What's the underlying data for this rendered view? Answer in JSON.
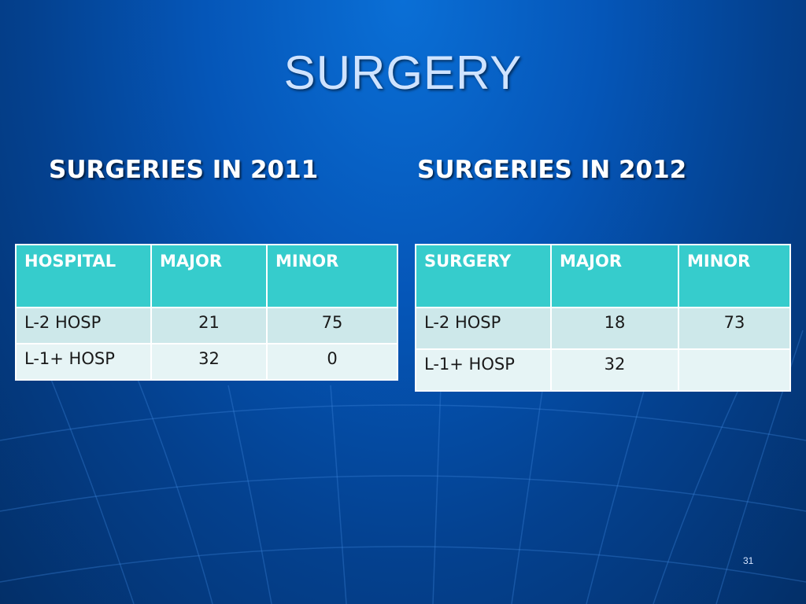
{
  "slide": {
    "title": "SURGERY",
    "page_number": "31"
  },
  "section_2011": {
    "heading": "SURGERIES IN 2011",
    "columns": [
      "HOSPITAL",
      "MAJOR",
      "MINOR"
    ],
    "rows": [
      [
        "L-2 HOSP",
        "21",
        "75"
      ],
      [
        "L-1+ HOSP",
        "32",
        "0"
      ]
    ]
  },
  "section_2012": {
    "heading": "SURGERIES IN 2012",
    "columns": [
      "SURGERY",
      "MAJOR",
      "MINOR"
    ],
    "rows": [
      [
        "L-2 HOSP",
        "18",
        "73"
      ],
      [
        "L-1+ HOSP",
        "32",
        ""
      ]
    ]
  },
  "colors": {
    "header_fill": "#36cccc",
    "row_fill_1": "#cde8ea",
    "row_fill_2": "#e6f4f5",
    "background": "#0556b8"
  }
}
